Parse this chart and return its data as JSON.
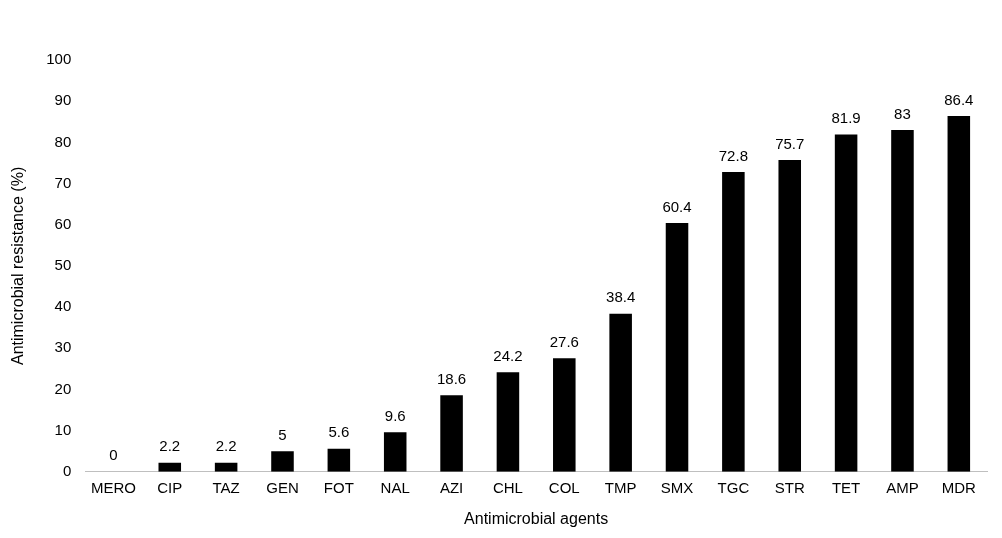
{
  "chart_data": {
    "type": "bar",
    "xlabel": "Antimicrobial agents",
    "ylabel": "Antimicrobial resistance (%)",
    "categories": [
      "MERO",
      "CIP",
      "TAZ",
      "GEN",
      "FOT",
      "NAL",
      "AZI",
      "CHL",
      "COL",
      "TMP",
      "SMX",
      "TGC",
      "STR",
      "TET",
      "AMP",
      "MDR"
    ],
    "values": [
      0,
      2.2,
      2.2,
      5,
      5.6,
      9.6,
      18.6,
      24.2,
      27.6,
      38.4,
      60.4,
      72.8,
      75.7,
      81.9,
      83,
      86.4
    ],
    "color": "#000000",
    "ylim": [
      0,
      100
    ],
    "yticks": [
      0,
      10,
      20,
      30,
      40,
      50,
      60,
      70,
      80,
      90,
      100
    ],
    "grid": false,
    "data_labels": true
  }
}
